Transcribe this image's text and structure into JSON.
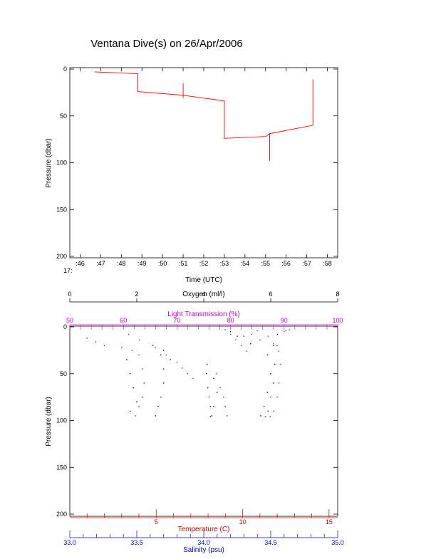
{
  "title": "Ventana Dive(s) on 26/Apr/2006",
  "colors": {
    "axis": "#000000",
    "pressure_trace": "#ff0000",
    "light_transmission": "#cc00cc",
    "temperature": "#cc0000",
    "salinity": "#0000cc",
    "oxygen": "#000000"
  },
  "chart_data": [
    {
      "type": "line",
      "title": "Ventana Dive(s) on 26/Apr/2006",
      "xlabel": "Time (UTC)",
      "ylabel": "Pressure (dbar)",
      "x_hour_label": "17:",
      "xlim": [
        45.5,
        58.5
      ],
      "ylim": [
        200,
        0
      ],
      "x_tick_values": [
        46,
        47,
        48,
        49,
        50,
        51,
        52,
        53,
        54,
        55,
        56,
        57,
        58
      ],
      "x_tick_labels": [
        ":46",
        ":47",
        ":48",
        ":49",
        ":50",
        ":51",
        ":52",
        ":53",
        ":54",
        ":55",
        ":56",
        ":57",
        ":58"
      ],
      "y_tick_values": [
        0,
        50,
        100,
        150,
        200
      ],
      "y_tick_labels": [
        "0",
        "50",
        "100",
        "150",
        "200"
      ],
      "grid": false,
      "series": [
        {
          "x": [
            46.7,
            48.8,
            48.8,
            51.0,
            53.0,
            53.0,
            55.0,
            55.2,
            57.3,
            57.3
          ],
          "y": [
            3,
            5,
            24,
            28,
            34,
            74,
            72,
            69,
            60,
            11
          ]
        }
      ],
      "spikes": [
        {
          "x": 51.0,
          "y_top": 15,
          "y_bottom": 31
        },
        {
          "x": 55.2,
          "y_top": 69,
          "y_bottom": 98
        }
      ]
    },
    {
      "type": "scatter",
      "ylabel": "Pressure (dbar)",
      "ylim": [
        200,
        0
      ],
      "y_tick_values": [
        0,
        50,
        100,
        150,
        200
      ],
      "y_tick_labels": [
        "0",
        "50",
        "100",
        "150",
        "200"
      ],
      "axes": {
        "oxygen": {
          "label": "Oxygen (ml/l)",
          "range": [
            0,
            8
          ],
          "ticks": [
            0,
            2,
            4,
            6,
            8
          ],
          "tick_labels": [
            "0",
            "2",
            "4",
            "6",
            "8"
          ],
          "position": "top-outer"
        },
        "light_transmission": {
          "label": "Light Transmission (%)",
          "range": [
            50,
            100
          ],
          "ticks": [
            50,
            60,
            70,
            80,
            90,
            100
          ],
          "tick_labels": [
            "50",
            "60",
            "70",
            "80",
            "90",
            "100"
          ],
          "position": "top-inner"
        },
        "temperature": {
          "label": "Temperature (C)",
          "range": [
            0,
            15.5
          ],
          "ticks": [
            5,
            10,
            15
          ],
          "tick_labels": [
            "5",
            "10",
            "15"
          ],
          "position": "bottom-inner"
        },
        "salinity": {
          "label": "Salinity (psu)",
          "range": [
            33.0,
            35.0
          ],
          "ticks": [
            33.0,
            33.5,
            34.0,
            34.5,
            35.0
          ],
          "tick_labels": [
            "33.0",
            "33.5",
            "34.0",
            "34.5",
            "35.0"
          ],
          "position": "bottom-outer"
        }
      },
      "series": [
        {
          "name": "Light Transmission",
          "axis": "light_transmission",
          "points": [
            [
              61,
              8
            ],
            [
              63,
              14
            ],
            [
              66,
              22
            ],
            [
              68,
              30
            ],
            [
              70,
              38
            ],
            [
              71,
              44
            ],
            [
              72,
              50
            ],
            [
              73,
              55
            ],
            [
              79,
              3
            ],
            [
              80,
              8
            ],
            [
              81,
              14
            ],
            [
              82,
              20
            ],
            [
              83,
              26
            ],
            [
              85,
              4
            ],
            [
              87,
              10
            ],
            [
              88,
              18
            ],
            [
              89,
              26
            ],
            [
              90,
              5
            ],
            [
              91,
              3
            ]
          ]
        },
        {
          "name": "Temperature",
          "axis": "temperature",
          "points": [
            [
              1.0,
              12
            ],
            [
              1.5,
              16
            ],
            [
              2.0,
              20
            ],
            [
              3.0,
              22
            ],
            [
              3.6,
              25
            ],
            [
              4.0,
              30
            ],
            [
              4.2,
              45
            ],
            [
              4.3,
              60
            ],
            [
              4.2,
              75
            ],
            [
              4.0,
              85
            ],
            [
              3.8,
              95
            ],
            [
              8.5,
              50
            ],
            [
              8.7,
              65
            ],
            [
              8.9,
              75
            ],
            [
              9.0,
              85
            ],
            [
              9.1,
              95
            ],
            [
              10.5,
              8
            ],
            [
              11.0,
              14
            ],
            [
              12.0,
              20
            ],
            [
              12.2,
              40
            ],
            [
              12.1,
              60
            ],
            [
              12.0,
              75
            ],
            [
              11.8,
              90
            ],
            [
              11.6,
              96
            ],
            [
              12.5,
              4
            ]
          ]
        },
        {
          "name": "Salinity",
          "axis": "salinity",
          "points": [
            [
              33.62,
              20
            ],
            [
              33.68,
              30
            ],
            [
              33.7,
              45
            ],
            [
              33.7,
              60
            ],
            [
              33.68,
              75
            ],
            [
              33.66,
              85
            ],
            [
              33.64,
              95
            ],
            [
              34.02,
              50
            ],
            [
              34.03,
              65
            ],
            [
              34.04,
              75
            ],
            [
              34.05,
              85
            ],
            [
              34.06,
              95
            ],
            [
              34.52,
              20
            ],
            [
              34.53,
              40
            ],
            [
              34.52,
              60
            ],
            [
              34.5,
              75
            ],
            [
              34.48,
              90
            ],
            [
              34.46,
              96
            ],
            [
              34.2,
              5
            ],
            [
              34.3,
              10
            ]
          ]
        },
        {
          "name": "Oxygen",
          "axis": "oxygen",
          "points": [
            [
              1.7,
              35
            ],
            [
              1.8,
              50
            ],
            [
              1.9,
              65
            ],
            [
              2.0,
              80
            ],
            [
              1.8,
              90
            ],
            [
              4.1,
              40
            ],
            [
              4.3,
              55
            ],
            [
              4.4,
              70
            ],
            [
              4.3,
              85
            ],
            [
              4.2,
              96
            ],
            [
              5.9,
              30
            ],
            [
              6.0,
              50
            ],
            [
              5.9,
              70
            ],
            [
              5.8,
              85
            ],
            [
              5.7,
              95
            ],
            [
              2.8,
              25
            ],
            [
              3.0,
              35
            ],
            [
              5.0,
              10
            ],
            [
              5.4,
              18
            ],
            [
              6.2,
              8
            ]
          ]
        }
      ]
    }
  ]
}
